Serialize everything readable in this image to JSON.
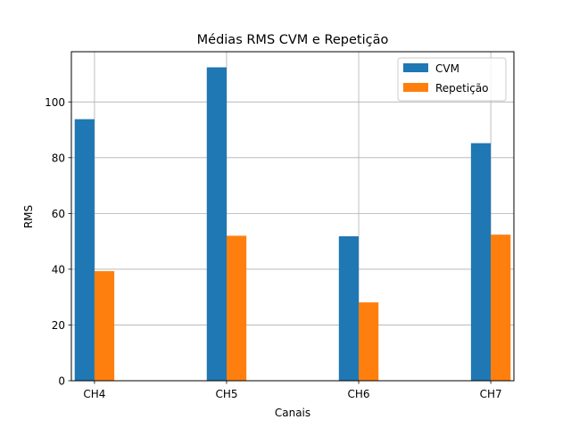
{
  "chart_data": {
    "type": "bar",
    "title": "Médias RMS CVM e Repetição",
    "xlabel": "Canais",
    "ylabel": "RMS",
    "categories": [
      "CH4",
      "CH5",
      "CH6",
      "CH7"
    ],
    "series": [
      {
        "name": "CVM",
        "values": [
          93.8,
          112.4,
          51.8,
          85.2
        ],
        "color": "#1f77b4"
      },
      {
        "name": "Repetição",
        "values": [
          39.3,
          52.0,
          28.1,
          52.4
        ],
        "color": "#ff7f0e"
      }
    ],
    "ylim": [
      0,
      118
    ],
    "yticks": [
      0,
      20,
      40,
      60,
      80,
      100
    ],
    "grid": true,
    "legend_position": "top-right"
  }
}
